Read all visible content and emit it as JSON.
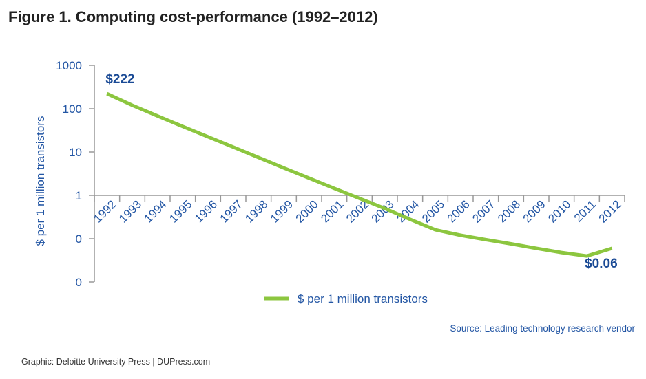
{
  "title": "Figure 1. Computing cost-performance (1992–2012)",
  "source": "Source: Leading technology research vendor",
  "footer": "Graphic: Deloitte University Press  |  DUPress.com",
  "colors": {
    "line": "#8cc63f",
    "text": "#2356a4",
    "annotation": "#1a4a95",
    "axis": "#999999"
  },
  "chart_data": {
    "type": "line",
    "title": "Figure 1. Computing cost-performance (1992–2012)",
    "xlabel": "",
    "ylabel": "$ per 1 million transistors",
    "yscale": "log",
    "ylim": [
      0.01,
      1000
    ],
    "yticks": [
      1000,
      100,
      10,
      1,
      0.1,
      0.01
    ],
    "ytick_labels": [
      "1000",
      "100",
      "10",
      "1",
      "0",
      "0"
    ],
    "categories": [
      "1992",
      "1993",
      "1994",
      "1995",
      "1996",
      "1997",
      "1998",
      "1999",
      "2000",
      "2001",
      "2002",
      "2003",
      "2004",
      "2005",
      "2006",
      "2007",
      "2008",
      "2009",
      "2010",
      "2011",
      "2012"
    ],
    "series": [
      {
        "name": "$ per 1 million transistors",
        "color": "#8cc63f",
        "values": [
          222,
          120,
          68,
          39,
          22.5,
          13,
          7.5,
          4.3,
          2.5,
          1.45,
          0.85,
          0.5,
          0.28,
          0.16,
          0.12,
          0.095,
          0.076,
          0.06,
          0.048,
          0.04,
          0.06
        ]
      }
    ],
    "annotations": [
      {
        "text": "$222",
        "category": "1992"
      },
      {
        "text": "$0.06",
        "category": "2012"
      }
    ],
    "legend": {
      "position": "bottom-center",
      "entries": [
        "$ per 1 million transistors"
      ]
    },
    "grid": false
  }
}
